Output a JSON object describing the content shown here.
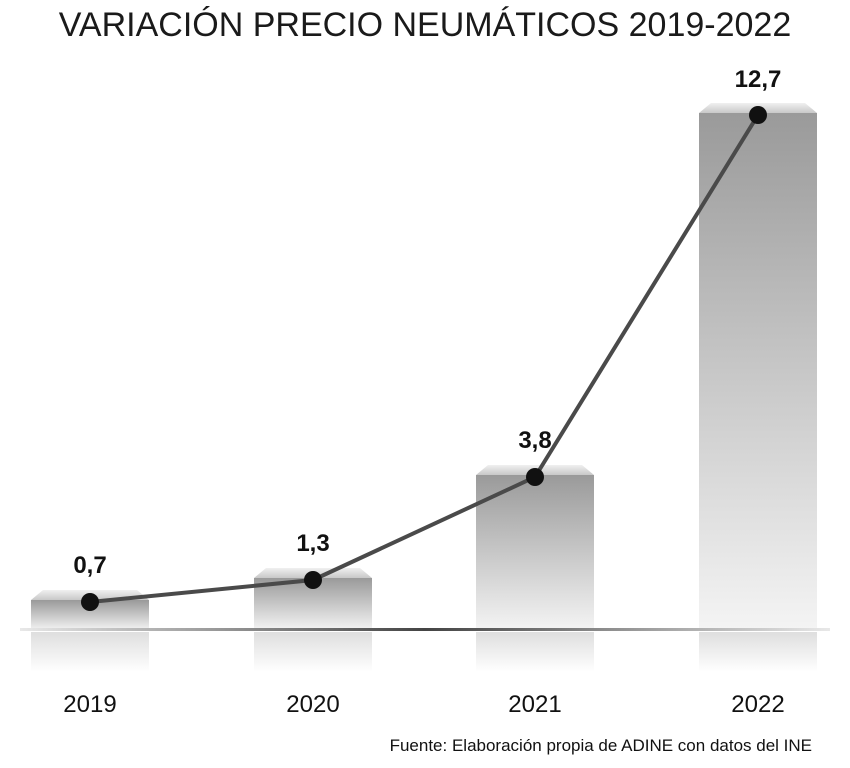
{
  "chart_data": {
    "type": "bar",
    "title": "VARIACIÓN PRECIO NEUMÁTICOS 2019-2022",
    "categories": [
      "2019",
      "2020",
      "2021",
      "2022"
    ],
    "values": [
      0.7,
      1.3,
      3.8,
      12.7
    ],
    "data_labels": [
      "0,7",
      "1,3",
      "3,8",
      "12,7"
    ],
    "overlay_line": true,
    "ylim": [
      0,
      12.7
    ],
    "grid": false,
    "legend": "none",
    "colors": {
      "bar_light": "#f2f2f2",
      "bar_dark": "#9a9a9a",
      "line": "#4a4a4a",
      "marker": "#111111",
      "baseline": "#555555"
    }
  },
  "source": "Fuente: Elaboración propia de ADINE con datos del INE"
}
